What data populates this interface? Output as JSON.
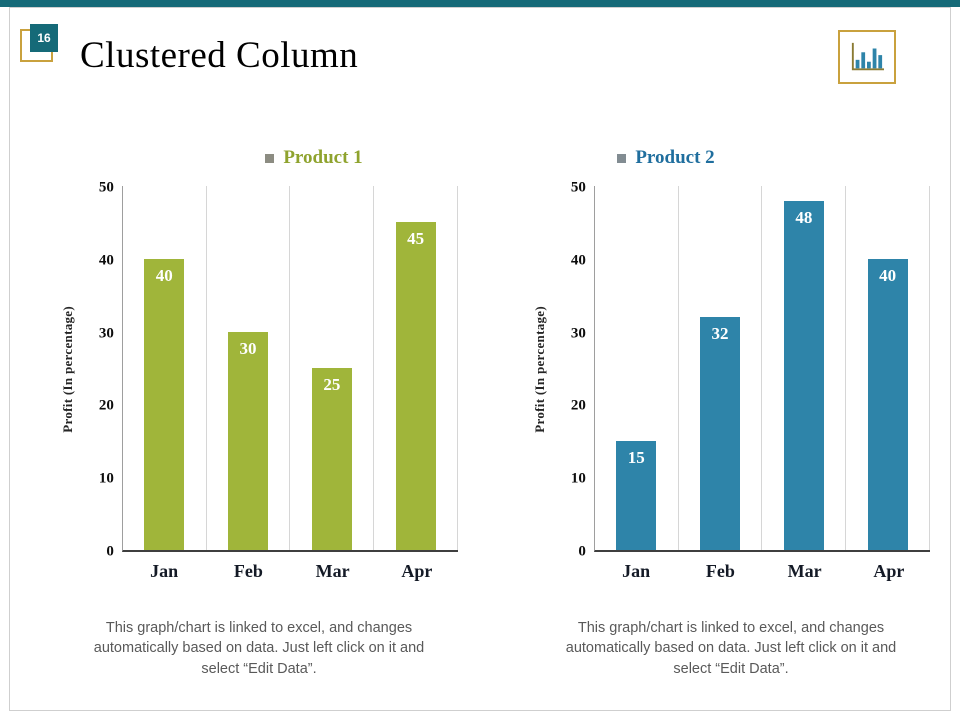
{
  "slide": {
    "number": "16",
    "title": "Clustered Column"
  },
  "colors": {
    "top_bar_teal": "#156a78",
    "accent_gold": "#c9a13e",
    "product1_green": "#a0b53a",
    "product2_blue": "#2e84a9"
  },
  "charts": [
    {
      "caption": "This graph/chart is linked to excel, and changes automatically based on data. Just left click on it and select “Edit Data”."
    },
    {
      "caption": "This graph/chart is linked to excel, and changes automatically based on data. Just left click on it and select “Edit Data”."
    }
  ],
  "chart_data": [
    {
      "type": "bar",
      "series_name": "Product 1",
      "categories": [
        "Jan",
        "Feb",
        "Mar",
        "Apr"
      ],
      "values": [
        40,
        30,
        25,
        45
      ],
      "ylabel": "Profit  (In percentage)",
      "ylim": [
        0,
        50
      ],
      "yticks": [
        0,
        10,
        20,
        30,
        40,
        50
      ],
      "bar_color": "#a0b53a",
      "legend_color": "#8fa32e",
      "bullet_color": "#8c8c82",
      "value_label_color": "#ffffff",
      "grid": "vertical-category-separators",
      "legend_position": "top"
    },
    {
      "type": "bar",
      "series_name": "Product 2",
      "categories": [
        "Jan",
        "Feb",
        "Mar",
        "Apr"
      ],
      "values": [
        15,
        32,
        48,
        40
      ],
      "ylabel": "Profit  (In percentage)",
      "ylim": [
        0,
        50
      ],
      "yticks": [
        0,
        10,
        20,
        30,
        40,
        50
      ],
      "bar_color": "#2e84a9",
      "legend_color": "#1f6e9e",
      "bullet_color": "#828c92",
      "value_label_color": "#ffffff",
      "grid": "vertical-category-separators",
      "legend_position": "top"
    }
  ]
}
